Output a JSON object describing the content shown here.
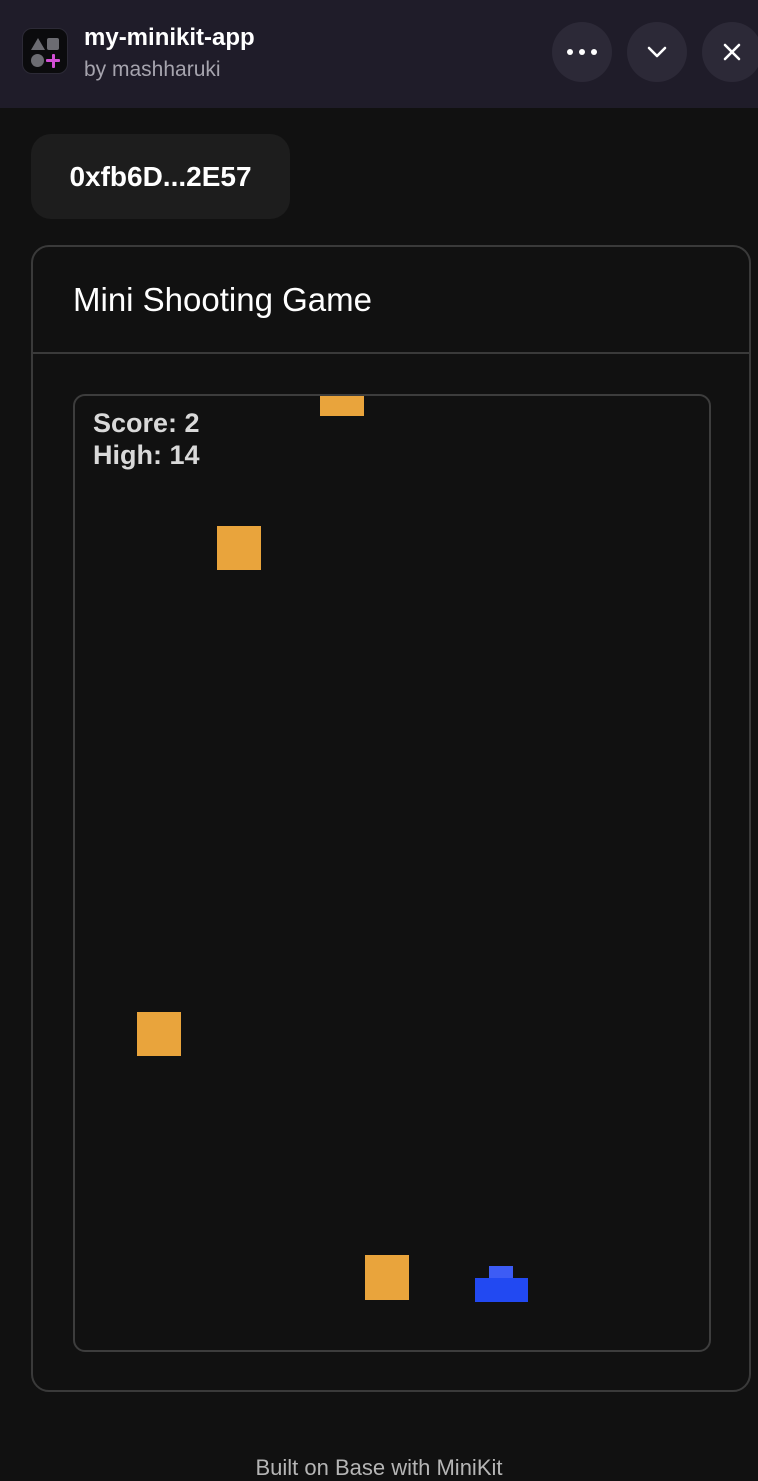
{
  "header": {
    "app_name": "my-minikit-app",
    "author": "by mashharuki",
    "icons": {
      "app_icon": "shapes-plus-icon",
      "more": "ellipsis-icon",
      "collapse": "chevron-down-icon",
      "close": "close-icon"
    }
  },
  "wallet": {
    "address": "0xfb6D...2E57"
  },
  "game": {
    "title": "Mini Shooting Game",
    "score_text": "Score: 2",
    "high_text": "High: 14",
    "colors": {
      "enemy": "#e9a43c",
      "player": "#2249f2",
      "background": "#111111"
    },
    "enemy_count": 4
  },
  "footer": {
    "text": "Built on Base with MiniKit"
  }
}
